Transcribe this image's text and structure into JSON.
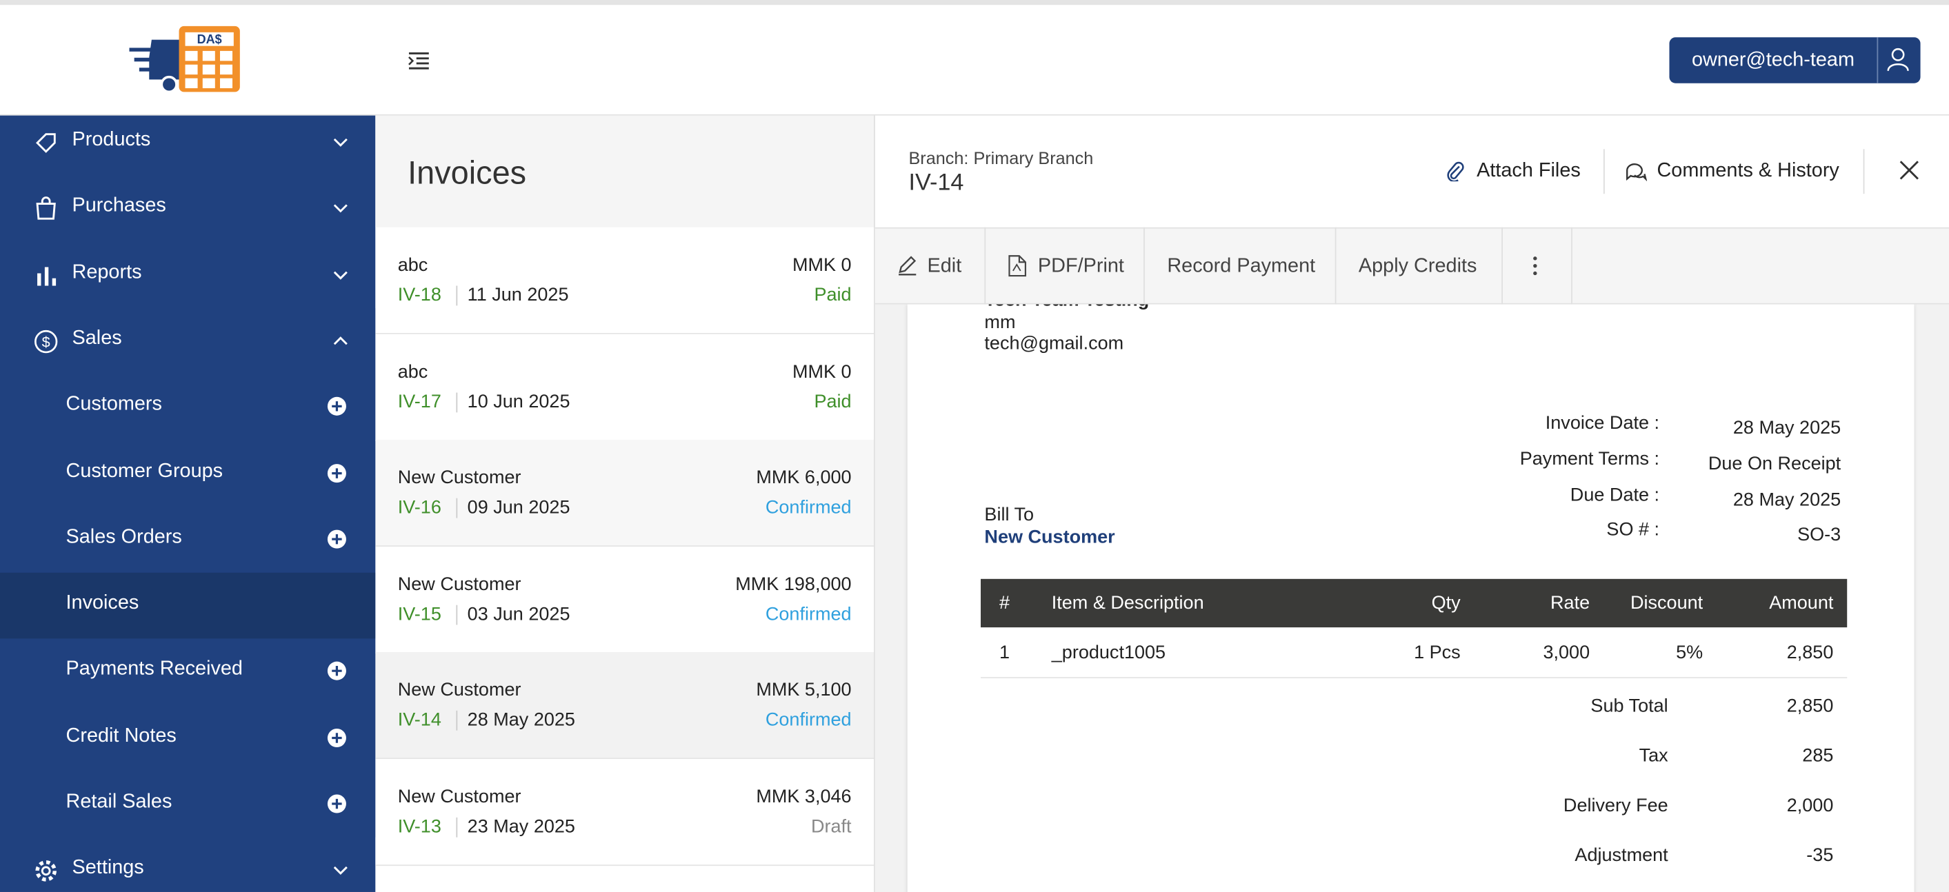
{
  "header": {
    "logo": "DA$",
    "user": "owner@tech-team"
  },
  "sidebar": {
    "menu": [
      {
        "label": "Products"
      },
      {
        "label": "Purchases"
      },
      {
        "label": "Reports"
      },
      {
        "label": "Sales",
        "children": [
          "Customers",
          "Customer Groups",
          "Sales Orders",
          "Invoices",
          "Payments Received",
          "Credit Notes",
          "Retail Sales"
        ]
      },
      {
        "label": "Settings"
      }
    ]
  },
  "list": {
    "title": "Invoices",
    "rows": [
      {
        "customer": "abc",
        "number": "IV-18",
        "date": "11 Jun 2025",
        "amount": "MMK 0",
        "status": "Paid"
      },
      {
        "customer": "abc",
        "number": "IV-17",
        "date": "10 Jun 2025",
        "amount": "MMK 0",
        "status": "Paid"
      },
      {
        "customer": "New Customer",
        "number": "IV-16",
        "date": "09 Jun 2025",
        "amount": "MMK 6,000",
        "status": "Confirmed"
      },
      {
        "customer": "New Customer",
        "number": "IV-15",
        "date": "03 Jun 2025",
        "amount": "MMK 198,000",
        "status": "Confirmed"
      },
      {
        "customer": "New Customer",
        "number": "IV-14",
        "date": "28 May 2025",
        "amount": "MMK 5,100",
        "status": "Confirmed"
      },
      {
        "customer": "New Customer",
        "number": "IV-13",
        "date": "23 May 2025",
        "amount": "MMK 3,046",
        "status": "Draft"
      }
    ]
  },
  "detail": {
    "branch": "Branch: Primary Branch",
    "number": "IV-14",
    "actions": [
      "Attach Files",
      "Comments & History"
    ],
    "toolbar": [
      "Edit",
      "PDF/Print",
      "Record Payment",
      "Apply Credits"
    ],
    "document": {
      "company": "Tech Team Testing",
      "address": "mm",
      "email": "tech@gmail.com",
      "meta": [
        {
          "label": "Invoice Date :",
          "value": "28 May 2025"
        },
        {
          "label": "Payment Terms :",
          "value": "Due On Receipt"
        },
        {
          "label": "Due Date :",
          "value": "28 May 2025"
        },
        {
          "label": "SO # :",
          "value": "SO-3"
        }
      ],
      "bill_to_label": "Bill To",
      "bill_to": "New Customer",
      "table": {
        "headers": [
          "#",
          "Item & Description",
          "Qty",
          "Rate",
          "Discount",
          "Amount"
        ],
        "rows": [
          [
            "1",
            "_product1005",
            "1 Pcs",
            "3,000",
            "5%",
            "2,850"
          ]
        ]
      },
      "totals": [
        {
          "label": "Sub Total",
          "value": "2,850"
        },
        {
          "label": "Tax",
          "value": "285"
        },
        {
          "label": "Delivery Fee",
          "value": "2,000"
        },
        {
          "label": "Adjustment",
          "value": "-35"
        }
      ]
    }
  }
}
